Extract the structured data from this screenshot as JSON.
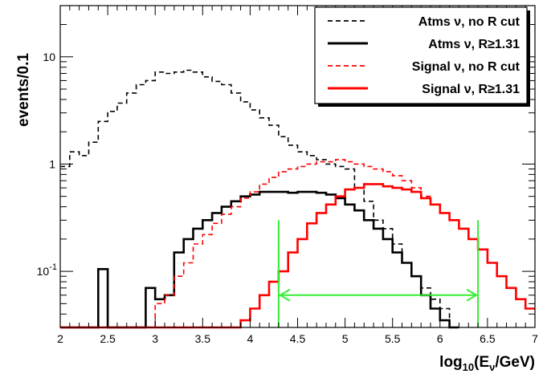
{
  "chart_data": {
    "type": "line",
    "ylabel": "events/0.1",
    "xlabel": {
      "base": "log",
      "sub": "10",
      "open": "(E",
      "nu": "ν",
      "close": "/GeV)"
    },
    "xlim": [
      2,
      7
    ],
    "ylim": [
      0.03,
      30
    ],
    "yscale": "log",
    "x_ticks": [
      "2",
      "2.5",
      "3",
      "3.5",
      "4",
      "4.5",
      "5",
      "5.5",
      "6",
      "6.5",
      "7"
    ],
    "y_ticks": [
      {
        "v": 0.1,
        "base": "10",
        "exp": "-1"
      },
      {
        "v": 1,
        "base": "1",
        "exp": ""
      },
      {
        "v": 10,
        "base": "10",
        "exp": ""
      }
    ],
    "series": [
      {
        "name": "Atms ν, no R cut",
        "color": "#000000",
        "dashed": true,
        "x": [
          2.0,
          2.1,
          2.2,
          2.3,
          2.4,
          2.5,
          2.6,
          2.7,
          2.8,
          2.9,
          3.0,
          3.1,
          3.2,
          3.3,
          3.4,
          3.5,
          3.6,
          3.7,
          3.8,
          3.9,
          4.0,
          4.1,
          4.2,
          4.3,
          4.4,
          4.5,
          4.6,
          4.7,
          4.8,
          4.9,
          5.0,
          5.1,
          5.2,
          5.3,
          5.4,
          5.5,
          5.6,
          5.7,
          5.8,
          5.9,
          6.0,
          6.1
        ],
        "values": [
          0.95,
          1.3,
          1.2,
          1.6,
          2.5,
          3.1,
          3.7,
          4.6,
          5.5,
          6.0,
          7.2,
          7.0,
          7.2,
          7.5,
          7.2,
          6.5,
          5.9,
          5.5,
          4.6,
          3.8,
          3.2,
          2.7,
          2.3,
          1.8,
          1.5,
          1.3,
          1.2,
          1.1,
          1.0,
          0.95,
          0.9,
          0.6,
          0.45,
          0.3,
          0.25,
          0.18,
          0.12,
          0.09,
          0.07,
          0.055,
          0.045,
          0.03
        ]
      },
      {
        "name": "Atms ν, R≥1.31",
        "color": "#000000",
        "dashed": false,
        "x": [
          2.0,
          2.1,
          2.2,
          2.3,
          2.4,
          2.5,
          2.6,
          2.7,
          2.8,
          2.9,
          3.0,
          3.1,
          3.2,
          3.3,
          3.4,
          3.5,
          3.6,
          3.7,
          3.8,
          3.9,
          4.0,
          4.1,
          4.2,
          4.3,
          4.4,
          4.5,
          4.6,
          4.7,
          4.8,
          4.9,
          5.0,
          5.1,
          5.2,
          5.3,
          5.4,
          5.5,
          5.6,
          5.7,
          5.8,
          5.9,
          6.0,
          6.1
        ],
        "values": [
          0.03,
          0.03,
          0.03,
          0.03,
          0.105,
          0.03,
          0.03,
          0.03,
          0.03,
          0.07,
          0.055,
          0.06,
          0.15,
          0.2,
          0.25,
          0.3,
          0.35,
          0.4,
          0.45,
          0.5,
          0.52,
          0.55,
          0.55,
          0.55,
          0.54,
          0.55,
          0.55,
          0.54,
          0.52,
          0.48,
          0.42,
          0.37,
          0.3,
          0.25,
          0.2,
          0.15,
          0.12,
          0.09,
          0.06,
          0.045,
          0.035,
          0.03
        ]
      },
      {
        "name": "Signal ν, no R cut",
        "color": "#ff0000",
        "dashed": true,
        "x": [
          2.0,
          2.1,
          2.2,
          2.3,
          2.4,
          2.5,
          2.6,
          2.7,
          2.8,
          2.9,
          3.0,
          3.1,
          3.2,
          3.3,
          3.4,
          3.5,
          3.6,
          3.7,
          3.8,
          3.9,
          4.0,
          4.1,
          4.2,
          4.3,
          4.4,
          4.5,
          4.6,
          4.7,
          4.8,
          4.9,
          5.0,
          5.1,
          5.2,
          5.3,
          5.4,
          5.5,
          5.6,
          5.7,
          5.8,
          5.9,
          6.0,
          6.1,
          6.2,
          6.3,
          6.4,
          6.5,
          6.6,
          6.7,
          6.8,
          6.9
        ],
        "values": [
          0.03,
          0.03,
          0.03,
          0.03,
          0.03,
          0.03,
          0.03,
          0.03,
          0.03,
          0.03,
          0.05,
          0.06,
          0.09,
          0.12,
          0.18,
          0.22,
          0.28,
          0.34,
          0.4,
          0.48,
          0.55,
          0.65,
          0.75,
          0.85,
          0.9,
          0.95,
          1.0,
          1.05,
          1.05,
          1.1,
          1.05,
          1.0,
          0.95,
          0.9,
          0.85,
          0.78,
          0.7,
          0.6,
          0.5,
          0.42,
          0.35,
          0.3,
          0.25,
          0.2,
          0.16,
          0.12,
          0.09,
          0.07,
          0.055,
          0.045
        ]
      },
      {
        "name": "Signal ν, R≥1.31",
        "color": "#ff0000",
        "dashed": false,
        "x": [
          2.0,
          2.1,
          2.2,
          2.3,
          2.4,
          2.5,
          2.6,
          2.7,
          2.8,
          2.9,
          3.0,
          3.1,
          3.2,
          3.3,
          3.4,
          3.5,
          3.6,
          3.7,
          3.8,
          3.9,
          4.0,
          4.1,
          4.2,
          4.3,
          4.4,
          4.5,
          4.6,
          4.7,
          4.8,
          4.9,
          5.0,
          5.1,
          5.2,
          5.3,
          5.4,
          5.5,
          5.6,
          5.7,
          5.8,
          5.9,
          6.0,
          6.1,
          6.2,
          6.3,
          6.4,
          6.5,
          6.6,
          6.7,
          6.8,
          6.9
        ],
        "values": [
          0.03,
          0.03,
          0.03,
          0.03,
          0.03,
          0.03,
          0.03,
          0.03,
          0.03,
          0.03,
          0.03,
          0.03,
          0.03,
          0.03,
          0.03,
          0.03,
          0.03,
          0.03,
          0.03,
          0.035,
          0.045,
          0.06,
          0.08,
          0.1,
          0.15,
          0.2,
          0.28,
          0.35,
          0.42,
          0.5,
          0.58,
          0.6,
          0.65,
          0.65,
          0.62,
          0.6,
          0.58,
          0.55,
          0.48,
          0.42,
          0.35,
          0.3,
          0.25,
          0.2,
          0.16,
          0.12,
          0.09,
          0.07,
          0.055,
          0.045
        ]
      }
    ],
    "interval": {
      "from": 4.3,
      "to": 6.4,
      "y": 0.06,
      "vline_top": 0.3,
      "color": "#33ee33"
    },
    "legend": {
      "position": "top-right",
      "entries": [
        {
          "text": "Atms ν, no R cut",
          "color": "#000000",
          "dashed": true
        },
        {
          "text": "Atms ν, R≥1.31",
          "color": "#000000",
          "dashed": false
        },
        {
          "text": "Signal ν, no R cut",
          "color": "#ff0000",
          "dashed": true
        },
        {
          "text": "Signal ν, R≥1.31",
          "color": "#ff0000",
          "dashed": false
        }
      ]
    }
  }
}
